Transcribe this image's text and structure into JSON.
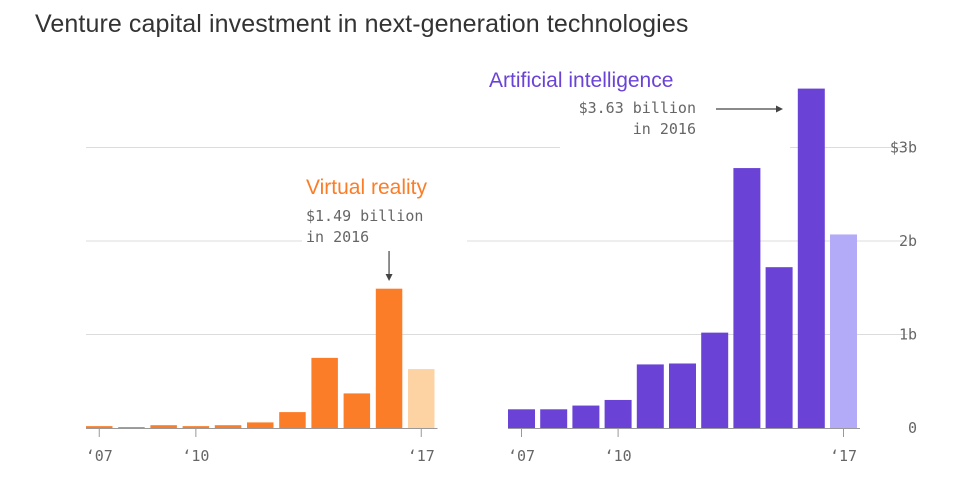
{
  "title": "Venture capital investment in next-generation technologies",
  "chart_data": {
    "type": "bar",
    "title": "Venture capital investment in next-generation technologies",
    "ylim": [
      0,
      3.63
    ],
    "y_ticks": [
      "$3b",
      "2b",
      "1b",
      "0"
    ],
    "y_tick_values": [
      3,
      2,
      1,
      0
    ],
    "grid": true,
    "x_tick_labels": [
      "‘07",
      "‘10",
      "‘17"
    ],
    "series": [
      {
        "name": "Virtual reality",
        "color": "#fb7d28",
        "partial_color": "#fdd3a4",
        "x": [
          2007,
          2008,
          2009,
          2010,
          2011,
          2012,
          2013,
          2014,
          2015,
          2016,
          2017
        ],
        "values": [
          0.02,
          0.01,
          0.03,
          0.02,
          0.03,
          0.06,
          0.17,
          0.75,
          0.37,
          1.49,
          0.63
        ],
        "partial_last": true,
        "annotation": {
          "label": "Virtual reality",
          "line1": "$1.49 billion",
          "line2": "in 2016"
        }
      },
      {
        "name": "Artificial intelligence",
        "color": "#6a43d6",
        "partial_color": "#b3aaf8",
        "x": [
          2007,
          2008,
          2009,
          2010,
          2011,
          2012,
          2013,
          2014,
          2015,
          2016,
          2017
        ],
        "values": [
          0.2,
          0.2,
          0.24,
          0.3,
          0.68,
          0.69,
          1.02,
          2.78,
          1.72,
          3.63,
          2.07
        ],
        "partial_last": true,
        "annotation": {
          "label": "Artificial intelligence",
          "line1": "$3.63 billion",
          "line2": "in 2016"
        }
      }
    ]
  }
}
